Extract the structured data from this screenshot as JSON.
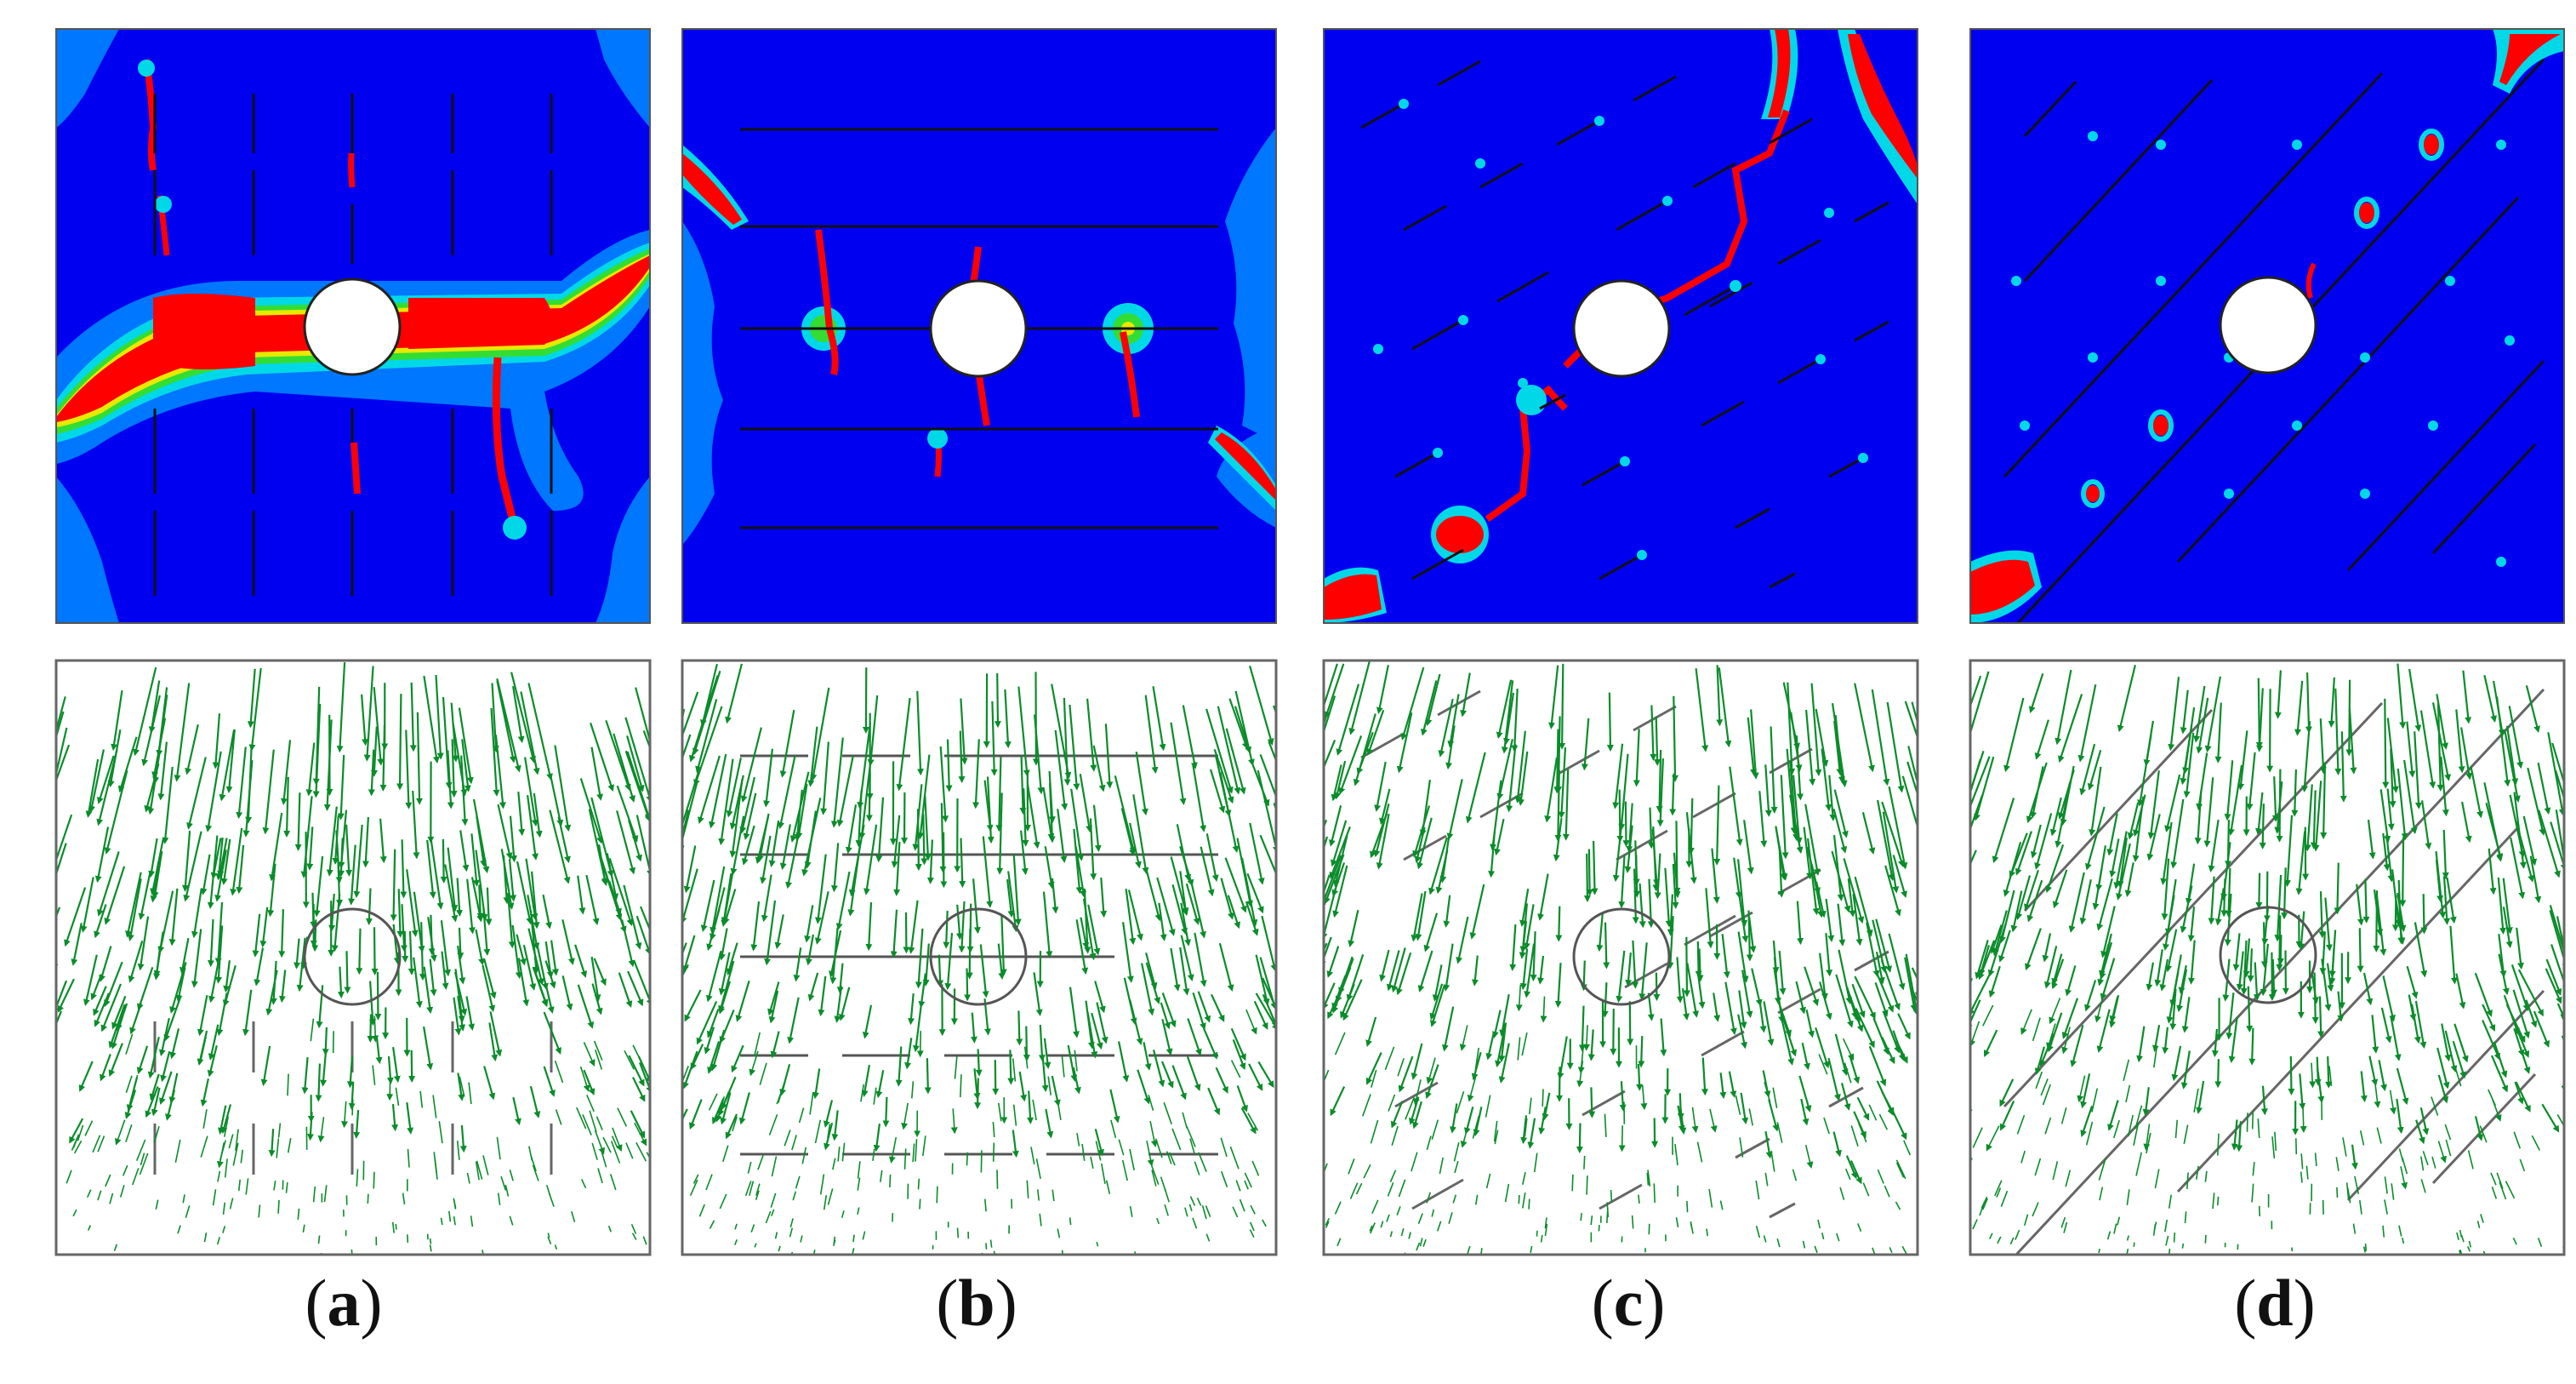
{
  "figure": {
    "panels": [
      {
        "label": "a",
        "joint_orientation": "vertical"
      },
      {
        "label": "b",
        "joint_orientation": "horizontal"
      },
      {
        "label": "c",
        "joint_orientation": "diagonal-shallow"
      },
      {
        "label": "d",
        "joint_orientation": "diagonal-steep"
      }
    ],
    "colors": {
      "contour_background": "#0000f0",
      "contour_light": "#0077ff",
      "contour_cyan": "#00d8e8",
      "contour_green": "#33dd33",
      "contour_yellow": "#e8e800",
      "contour_red": "#ff0000",
      "joint_line": "#111111",
      "vector_arrow": "#0a8c2a",
      "frame_border": "#666666"
    }
  }
}
